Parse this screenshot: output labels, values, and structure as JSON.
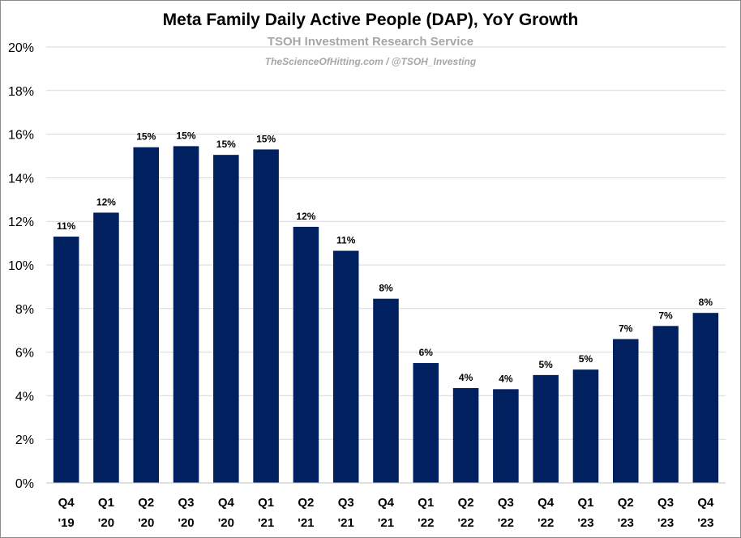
{
  "chart_data": {
    "type": "bar",
    "title": "Meta Family Daily Active People (DAP), YoY Growth",
    "subtitle": "TSOH Investment Research Service",
    "attribution": "TheScienceOfHitting.com / @TSOH_Investing",
    "categories": [
      [
        "Q4",
        "'19"
      ],
      [
        "Q1",
        "'20"
      ],
      [
        "Q2",
        "'20"
      ],
      [
        "Q3",
        "'20"
      ],
      [
        "Q4",
        "'20"
      ],
      [
        "Q1",
        "'21"
      ],
      [
        "Q2",
        "'21"
      ],
      [
        "Q3",
        "'21"
      ],
      [
        "Q4",
        "'21"
      ],
      [
        "Q1",
        "'22"
      ],
      [
        "Q2",
        "'22"
      ],
      [
        "Q3",
        "'22"
      ],
      [
        "Q4",
        "'22"
      ],
      [
        "Q1",
        "'23"
      ],
      [
        "Q2",
        "'23"
      ],
      [
        "Q3",
        "'23"
      ],
      [
        "Q4",
        "'23"
      ]
    ],
    "values": [
      11.3,
      12.4,
      15.4,
      15.45,
      15.05,
      15.3,
      11.75,
      10.65,
      8.45,
      5.5,
      4.35,
      4.3,
      4.95,
      5.2,
      6.6,
      7.2,
      7.8
    ],
    "data_labels": [
      "11%",
      "12%",
      "15%",
      "15%",
      "15%",
      "15%",
      "12%",
      "11%",
      "8%",
      "6%",
      "4%",
      "4%",
      "5%",
      "5%",
      "7%",
      "7%",
      "8%"
    ],
    "yticks": [
      {
        "value": 0,
        "label": "0%"
      },
      {
        "value": 2,
        "label": "2%"
      },
      {
        "value": 4,
        "label": "4%"
      },
      {
        "value": 6,
        "label": "6%"
      },
      {
        "value": 8,
        "label": "8%"
      },
      {
        "value": 10,
        "label": "10%"
      },
      {
        "value": 12,
        "label": "12%"
      },
      {
        "value": 14,
        "label": "14%"
      },
      {
        "value": 16,
        "label": "16%"
      },
      {
        "value": 18,
        "label": "18%"
      },
      {
        "value": 20,
        "label": "20%"
      }
    ],
    "ylim": [
      0,
      20
    ],
    "grid": true,
    "bar_color": "#002060",
    "xlabel": "",
    "ylabel": ""
  }
}
